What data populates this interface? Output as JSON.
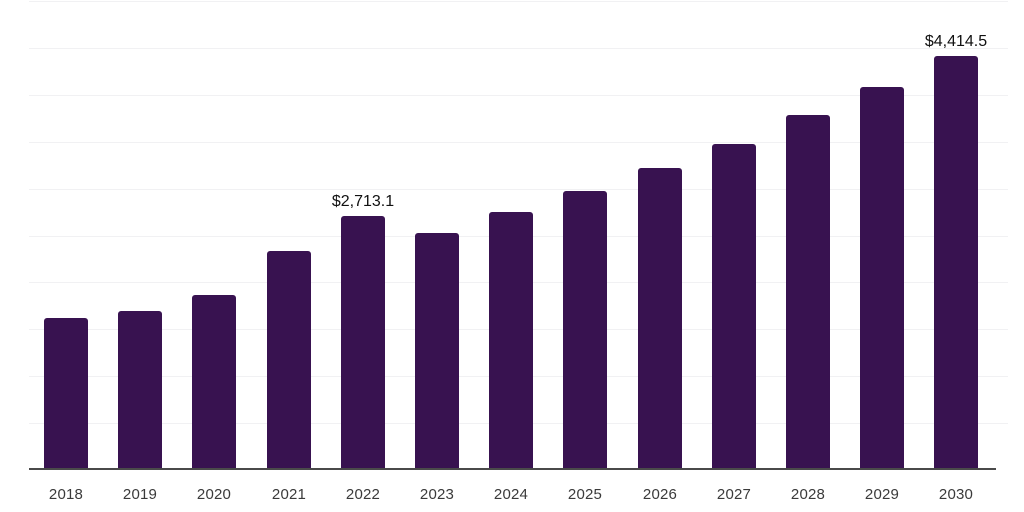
{
  "chart_data": {
    "type": "bar",
    "title": "",
    "xlabel": "",
    "ylabel": "",
    "categories": [
      "2018",
      "2019",
      "2020",
      "2021",
      "2022",
      "2023",
      "2024",
      "2025",
      "2026",
      "2027",
      "2028",
      "2029",
      "2030"
    ],
    "values": [
      1620,
      1690,
      1865,
      2330,
      2713.1,
      2525,
      2750,
      2970,
      3215,
      3480,
      3780,
      4080,
      4414.5
    ],
    "value_labels": {
      "2022": "$2,713.1",
      "2030": "$4,414.5"
    },
    "ylim": [
      0,
      5000
    ],
    "grid_step": 500,
    "grid": "on",
    "y_tick_labels": "none",
    "legend": "none",
    "colors": {
      "bar": "#381250",
      "grid": "#f1f1f3",
      "axis": "#4a4a4a",
      "tick_label": "#3a3a3a",
      "value_label": "#111111",
      "background": "#ffffff"
    }
  }
}
